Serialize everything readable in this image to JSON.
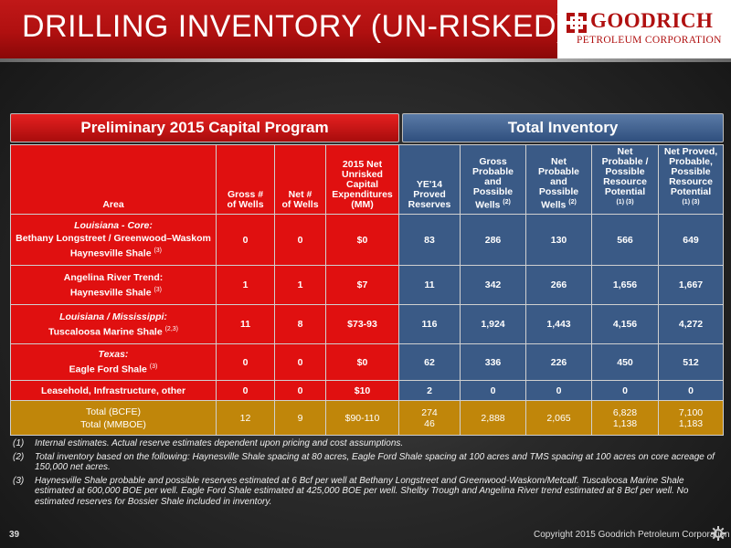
{
  "header": {
    "title": "DRILLING INVENTORY (UN-RISKED)",
    "logo_name": "GOODRICH",
    "logo_sub": "PETROLEUM CORPORATION"
  },
  "bands": {
    "capital": "Preliminary 2015 Capital Program",
    "inventory": "Total Inventory"
  },
  "columns": {
    "area": "Area",
    "gross": [
      "Gross #",
      "of Wells"
    ],
    "net": [
      "Net #",
      "of Wells"
    ],
    "capex": [
      "2015 Net",
      "Unrisked",
      "Capital",
      "Expenditures",
      "(MM)"
    ],
    "proved": [
      "YE'14",
      "Proved",
      "Reserves"
    ],
    "gross_pp": [
      "Gross",
      "Probable",
      "and",
      "Possible",
      "Wells"
    ],
    "gross_pp_sup": "(2)",
    "net_pp": [
      "Net",
      "Probable",
      "and",
      "Possible",
      "Wells"
    ],
    "net_pp_sup": "(2)",
    "net_prp": [
      "Net",
      "Probable /",
      "Possible",
      "Resource",
      "Potential"
    ],
    "net_prp_sup": "(1) (3)",
    "net_ppr": [
      "Net Proved,",
      "Probable,",
      "Possible",
      "Resource",
      "Potential"
    ],
    "net_ppr_sup": "(1) (3)"
  },
  "rows": [
    {
      "line1": "Louisiana - Core:",
      "line2": "Bethany Longstreet  / Greenwood–Waskom",
      "line3": "Haynesville  Shale",
      "sup": "(3)",
      "values": [
        "0",
        "0",
        "$0",
        "83",
        "286",
        "130",
        "566",
        "649"
      ]
    },
    {
      "line1": "Angelina River Trend:",
      "line2": "Haynesville  Shale",
      "sup": "(3)",
      "values": [
        "1",
        "1",
        "$7",
        "11",
        "342",
        "266",
        "1,656",
        "1,667"
      ]
    },
    {
      "line1": "Louisiana / Mississippi:",
      "line2": "Tuscaloosa Marine Shale",
      "sup": "(2,3)",
      "values": [
        "11",
        "8",
        "$73-93",
        "116",
        "1,924",
        "1,443",
        "4,156",
        "4,272"
      ]
    },
    {
      "line1": "Texas:",
      "line2": "Eagle Ford Shale",
      "sup": "(3)",
      "values": [
        "0",
        "0",
        "$0",
        "62",
        "336",
        "226",
        "450",
        "512"
      ]
    },
    {
      "line1": "Leasehold,  Infrastructure,  other",
      "values": [
        "0",
        "0",
        "$10",
        "2",
        "0",
        "0",
        "0",
        "0"
      ]
    }
  ],
  "total": {
    "line1": "Total (BCFE)",
    "line2": "Total (MMBOE)",
    "gross": "12",
    "net": "9",
    "capex": "$90-110",
    "proved": [
      "274",
      "46"
    ],
    "gross_pp": "2,888",
    "net_pp": "2,065",
    "net_prp": [
      "6,828",
      "1,138"
    ],
    "net_ppr": [
      "7,100",
      "1,183"
    ]
  },
  "notes": [
    {
      "n": "(1)",
      "text": "Internal estimates.  Actual reserve estimates dependent upon pricing and cost assumptions."
    },
    {
      "n": "(2)",
      "text": "Total inventory based on the following: Haynesville Shale spacing at 80 acres, Eagle Ford Shale spacing at 100 acres and TMS spacing at 100 acres on  core acreage of 150,000 net acres."
    },
    {
      "n": "(3)",
      "text": "Haynesville Shale probable and possible reserves estimated at 6 Bcf per well at Bethany Longstreet and  Greenwood-Waskom/Metcalf.   Tuscaloosa Marine Shale estimated at 600,000 BOE per well. Eagle Ford Shale estimated at 425,000 BOE per well. Shelby Trough and Angelina River trend estimated at 8 Bcf per well. No estimated reserves for Bossier Shale included in inventory."
    }
  ],
  "footer": {
    "page": "39",
    "copyright": "Copyright 2015 Goodrich Petroleum Corporation"
  },
  "colors": {
    "red": "#e01010",
    "blue": "#3a5a86",
    "gold": "#c0860a"
  }
}
